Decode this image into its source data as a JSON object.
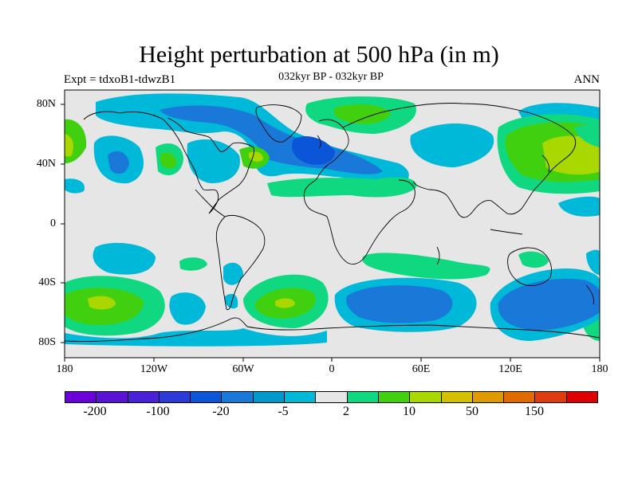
{
  "title": "Height perturbation at 500 hPa (in m)",
  "left_string": "Expt = tdxoB1-tdwzB1",
  "center_string": "032kyr BP - 032kyr BP",
  "right_string": "ANN",
  "lat_labels": [
    "80N",
    "40N",
    "0",
    "40S",
    "80S"
  ],
  "lon_labels": [
    "180",
    "120W",
    "60W",
    "0",
    "60E",
    "120E",
    "180"
  ],
  "colorbar": {
    "colors": [
      "#6b00d8",
      "#5a12d6",
      "#4a20d8",
      "#2e3ad8",
      "#0a55d8",
      "#1a78d8",
      "#0099cc",
      "#00b8d8",
      "#e6e6e6",
      "#10d880",
      "#40d010",
      "#a8d800",
      "#d4c000",
      "#e09a00",
      "#e06a00",
      "#e03c10",
      "#e00000"
    ],
    "labels": [
      "-200",
      "-100",
      "-20",
      "-5",
      "2",
      "10",
      "50",
      "150"
    ]
  },
  "chart_data": {
    "type": "filled-contour-map",
    "title": "Height perturbation at 500 hPa (in m)",
    "variable": "Height perturbation at 500 hPa",
    "units": "m",
    "experiment": "tdxoB1-tdwzB1",
    "period": "032kyr BP - 032kyr BP",
    "season": "ANN",
    "lon_range": [
      -180,
      180
    ],
    "lat_range": [
      -90,
      90
    ],
    "contour_levels": [
      -200,
      -100,
      -20,
      -5,
      2,
      10,
      50,
      150
    ],
    "features": [
      {
        "region": "North Atlantic / Europe",
        "sign": "negative",
        "approx_lon": -5,
        "approx_lat": 55
      },
      {
        "region": "NE Pacific",
        "sign": "negative",
        "approx_lon": -150,
        "approx_lat": 40
      },
      {
        "region": "Northern Europe / Scandinavia",
        "sign": "positive",
        "approx_lon": 20,
        "approx_lat": 65
      },
      {
        "region": "NW Pacific",
        "sign": "positive",
        "approx_lon": 160,
        "approx_lat": 45
      },
      {
        "region": "South Pacific",
        "sign": "positive",
        "approx_lon": -160,
        "approx_lat": -55
      },
      {
        "region": "South Atlantic",
        "sign": "positive",
        "approx_lon": -30,
        "approx_lat": -55
      },
      {
        "region": "Southern Indian Ocean",
        "sign": "negative",
        "approx_lon": 45,
        "approx_lat": -55
      },
      {
        "region": "South of Australia",
        "sign": "negative",
        "approx_lon": 135,
        "approx_lat": -55
      }
    ]
  }
}
